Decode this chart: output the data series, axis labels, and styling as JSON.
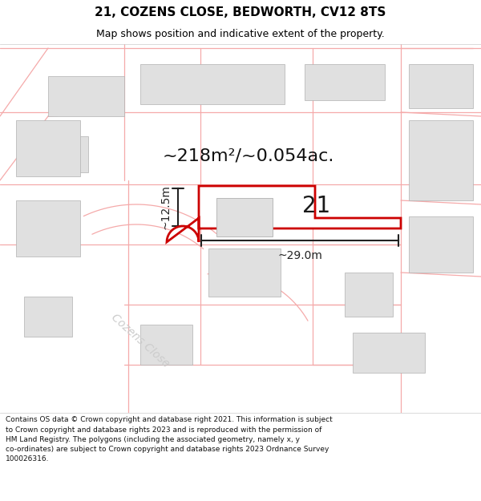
{
  "title_line1": "21, COZENS CLOSE, BEDWORTH, CV12 8TS",
  "title_line2": "Map shows position and indicative extent of the property.",
  "footer_text": "Contains OS data © Crown copyright and database right 2021. This information is subject\nto Crown copyright and database rights 2023 and is reproduced with the permission of\nHM Land Registry. The polygons (including the associated geometry, namely x, y\nco-ordinates) are subject to Crown copyright and database rights 2023 Ordnance Survey\n100026316.",
  "area_label": "~218m²/~0.054ac.",
  "plot_number": "21",
  "width_label": "~29.0m",
  "height_label": "~12.5m",
  "map_bg": "#ffffff",
  "road_line_color": "#f5aaaa",
  "plot_stroke": "#cc0000",
  "building_fill": "#e0e0e0",
  "building_edge": "#b0b0b0",
  "dim_color": "#222222",
  "title_color": "#000000",
  "footer_color": "#111111",
  "road_label_color": "#cccccc",
  "road_label": "Cozens Close",
  "title_fontsize": 11,
  "subtitle_fontsize": 9,
  "area_fontsize": 16,
  "plot_num_fontsize": 20,
  "dim_fontsize": 10,
  "road_label_fontsize": 10,
  "footer_fontsize": 6.5
}
